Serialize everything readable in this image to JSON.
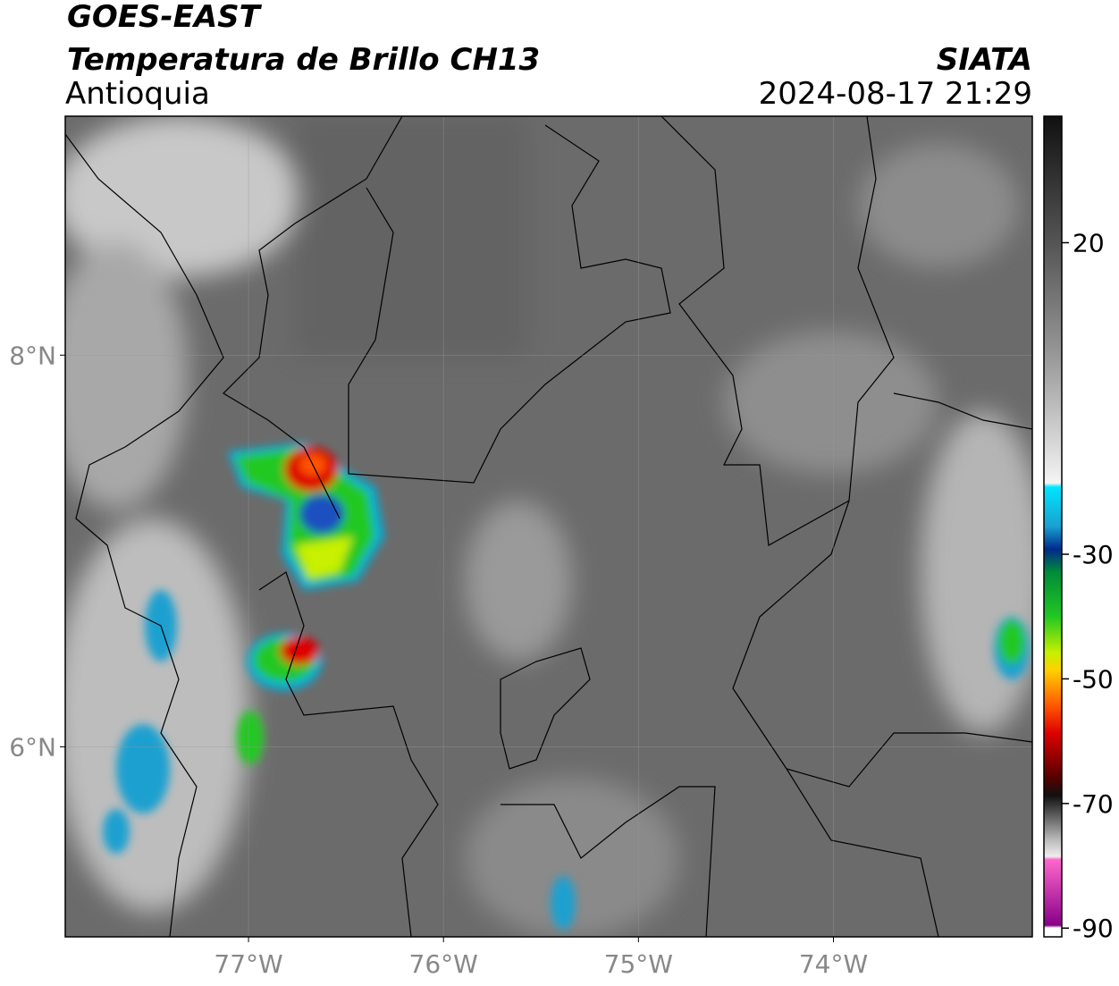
{
  "header": {
    "title": "GOES-EAST",
    "subtitle": "Temperatura de Brillo CH13",
    "region": "Antioquia",
    "source": "SIATA",
    "datetime": "2024-08-17 21:29"
  },
  "map": {
    "xlim": [
      -77.94,
      -72.98
    ],
    "ylim": [
      5.03,
      9.22
    ],
    "xticks": [
      {
        "value": -77,
        "label": "77°W"
      },
      {
        "value": -76,
        "label": "76°W"
      },
      {
        "value": -75,
        "label": "75°W"
      },
      {
        "value": -74,
        "label": "74°W"
      }
    ],
    "yticks": [
      {
        "value": 8,
        "label": "8°N"
      },
      {
        "value": 6,
        "label": "6°N"
      }
    ],
    "grid": true
  },
  "colorbar": {
    "lim": [
      -91.4,
      40.3
    ],
    "ticks": [
      20,
      -30,
      -50,
      -70,
      -90
    ]
  }
}
